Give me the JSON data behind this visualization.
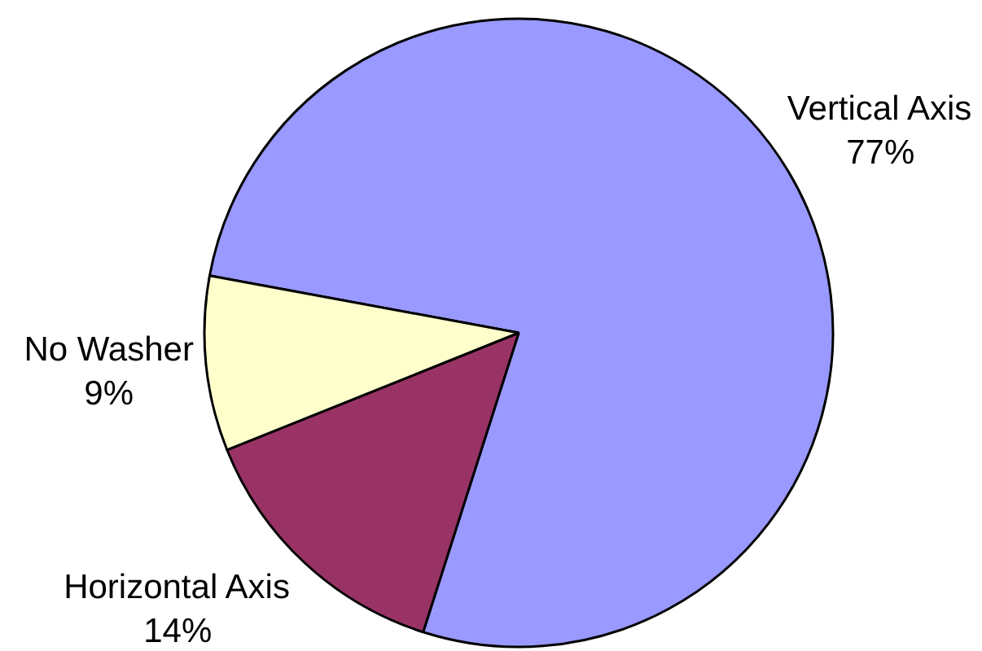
{
  "chart_data": {
    "type": "pie",
    "categories": [
      "Vertical Axis",
      "Horizontal Axis",
      "No Washer"
    ],
    "values": [
      77,
      14,
      9
    ],
    "colors": [
      "#9999ff",
      "#993366",
      "#ffffcc"
    ],
    "value_labels": [
      "77%",
      "14%",
      "9%"
    ]
  }
}
